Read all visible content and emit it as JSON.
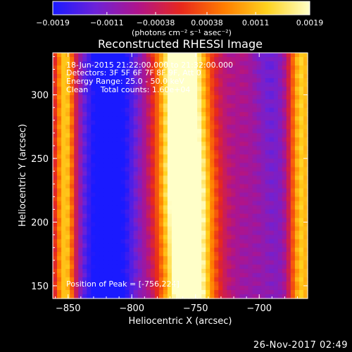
{
  "chart_data": {
    "type": "heatmap",
    "title": "Reconstructed RHESSI Image",
    "xlabel": "Heliocentric X (arcsec)",
    "ylabel": "Heliocentric Y (arcsec)",
    "xlim": [
      -862,
      -662
    ],
    "ylim": [
      140,
      333
    ],
    "x_ticks": [
      -850,
      -800,
      -750,
      -700
    ],
    "x_tick_labels": [
      "−850",
      "−800",
      "−750",
      "−700"
    ],
    "y_ticks": [
      150,
      200,
      250,
      300
    ],
    "y_tick_labels": [
      "150",
      "200",
      "250",
      "300"
    ],
    "colorbar": {
      "range": [
        -0.0019,
        0.0019
      ],
      "ticks": [
        -0.0019,
        -0.0011,
        -0.00038,
        0.00038,
        0.0011,
        0.0019
      ],
      "tick_labels": [
        "−0.0019",
        "−0.0011",
        "−0.00038",
        "0.00038",
        "0.0011",
        "0.0019"
      ],
      "label": "(photons cm⁻² s⁻¹ asec⁻²)",
      "colormap": [
        "#1a1aff",
        "#6d22d8",
        "#b0148a",
        "#e8281c",
        "#ff7d00",
        "#ffd21e",
        "#ffffc8"
      ]
    },
    "image_model": {
      "background": 0.3,
      "components": [
        {
          "name": "bright-band",
          "x0": -758,
          "slope": -0.025,
          "sigma": 14,
          "amp": 0.95
        },
        {
          "name": "left-bright-edge",
          "x0": -852,
          "slope": 0.0,
          "sigma": 6,
          "amp": 0.55
        },
        {
          "name": "left-dark-band",
          "x0": -818,
          "slope": 0.01,
          "sigma": 15,
          "amp": -0.42
        },
        {
          "name": "mid-red-band",
          "x0": -700,
          "slope": -0.08,
          "sigma": 10,
          "amp": 0.12
        },
        {
          "name": "right-dark-band",
          "x0": -693,
          "slope": -0.04,
          "sigma": 13,
          "amp": -0.18
        },
        {
          "name": "right-bright-edge",
          "x0": -667,
          "slope": 0.0,
          "sigma": 7,
          "amp": 0.55
        }
      ],
      "peak": {
        "x": -756,
        "y": 224,
        "amp": 0.1,
        "sigma": 20
      }
    },
    "annotations": [
      "18-Jun-2015 21:22:00.000 to 21:32:00.000",
      "Detectors: 3F 5F 6F 7F 8F 9F, Att 0",
      "Energy Range: 25.0 - 50.0 keV",
      "Clean     Total counts: 1.60e+04"
    ],
    "peak_label": "Position of Peak = [-756,224]",
    "footer": "26-Nov-2017 02:49"
  }
}
